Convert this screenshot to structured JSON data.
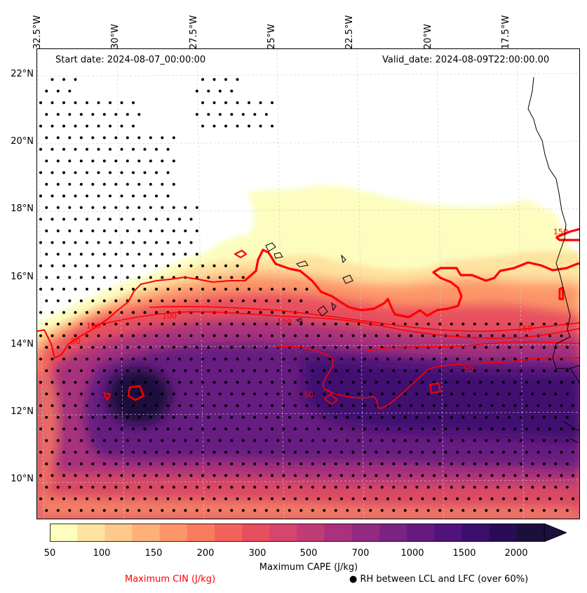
{
  "header": {
    "start_date": "Start date: 2024-08-07_00:00:00",
    "valid_date": "Valid_date: 2024-08-09T22:00:00.00"
  },
  "axes": {
    "longitude_labels": [
      "32.5°W",
      "30°W",
      "27.5°W",
      "25°W",
      "22.5°W",
      "20°W",
      "17.5°W"
    ],
    "longitude_values": [
      -32.5,
      -30,
      -27.5,
      -25,
      -22.5,
      -20,
      -17.5
    ],
    "latitude_labels": [
      "22°N",
      "20°N",
      "18°N",
      "16°N",
      "14°N",
      "12°N",
      "10°N"
    ],
    "latitude_values": [
      22,
      20,
      18,
      16,
      14,
      12,
      10
    ],
    "lon_range": [
      -32.5,
      -15.5
    ],
    "lat_range": [
      8.9,
      22.8
    ]
  },
  "colorbar": {
    "title": "Maximum CAPE (J/kg)",
    "tick_labels": [
      "50",
      "100",
      "150",
      "200",
      "300",
      "500",
      "700",
      "1000",
      "1500",
      "2000"
    ],
    "levels": [
      50,
      75,
      100,
      125,
      150,
      175,
      200,
      250,
      300,
      400,
      500,
      600,
      700,
      800,
      1000,
      1250,
      1500,
      1750,
      2000
    ],
    "colors": [
      "#fcfdbf",
      "#fee3a0",
      "#fec98a",
      "#feb078",
      "#fd9668",
      "#fa7c5e",
      "#f3625b",
      "#e74f5f",
      "#d6456c",
      "#c03c75",
      "#a8327d",
      "#922a81",
      "#7b2382",
      "#661a80",
      "#51127c",
      "#3a0f6e",
      "#2a0c56",
      "#1c0f3c"
    ],
    "extend": "max"
  },
  "legend": {
    "cin_label": "Maximum CIN (J/kg)",
    "cin_color": "#ff0000",
    "rh_label": "RH between LCL and LFC (over 60%)",
    "rh_marker": "●"
  },
  "contour_labels": [
    "100",
    "150",
    "150",
    "50",
    "50",
    "50",
    "150",
    "100"
  ],
  "colors": {
    "cin_contour": "#ff0000",
    "coastline": "#000000",
    "gridline": "#cccccc"
  }
}
